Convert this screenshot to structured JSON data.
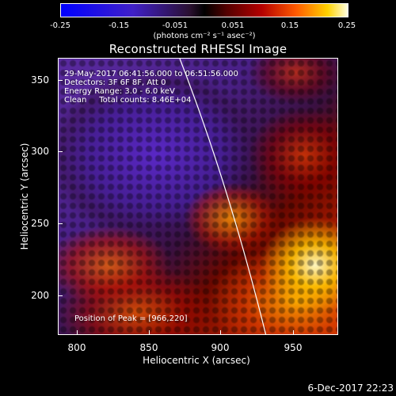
{
  "colorbar": {
    "ticks": [
      "-0.25",
      "-0.15",
      "-0.051",
      "0.051",
      "0.15",
      "0.25"
    ],
    "unit": "(photons cm⁻² s⁻¹ asec⁻²)"
  },
  "title": "Reconstructed RHESSI Image",
  "info": {
    "time_range": "29-May-2017 06:41:56.000 to 06:51:56.000",
    "detectors": "Detectors: 3F 6F 8F, Att 0",
    "energy": "Energy Range: 3.0 - 6.0 keV",
    "clean": "Clean     Total counts: 8.46E+04",
    "peak": "Position of Peak = [966,220]"
  },
  "axes": {
    "xlabel": "Heliocentric X (arcsec)",
    "ylabel": "Heliocentric Y (arcsec)",
    "xticks": [
      "800",
      "850",
      "900",
      "950"
    ],
    "yticks": [
      "350",
      "300",
      "250",
      "200"
    ],
    "xlim": [
      790,
      980
    ],
    "ylim": [
      172,
      368
    ]
  },
  "datestamp": "6-Dec-2017 22:23",
  "colors": {
    "background": "#000000",
    "limb": "#ffffff"
  }
}
